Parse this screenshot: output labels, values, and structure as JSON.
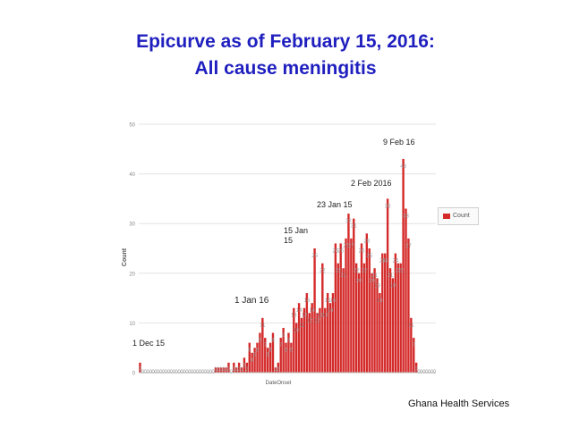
{
  "header": {
    "title_line1": "Epicurve as of February 15, 2016:",
    "title_line2": "All cause meningitis"
  },
  "credit": "Ghana Health Services",
  "annotations": [
    {
      "name": "annotation-1-dec-15",
      "text": "1 Dec 15"
    },
    {
      "name": "annotation-1-jan-16",
      "text": "1 Jan 16"
    },
    {
      "name": "annotation-15-jan-15",
      "text": "15 Jan\n15"
    },
    {
      "name": "annotation-23-jan-15",
      "text": "23 Jan 15"
    },
    {
      "name": "annotation-2-feb-2016",
      "text": "2 Feb 2016"
    },
    {
      "name": "annotation-9-feb-16",
      "text": "9 Feb 16"
    }
  ],
  "colors": {
    "bar": "#d42a2a",
    "title": "#1f1fbf"
  },
  "chart_data": {
    "type": "bar",
    "title": "",
    "xlabel": "DateOnset",
    "ylabel": "Count",
    "ylim": [
      0,
      50
    ],
    "yticks": [
      0,
      10,
      20,
      30,
      40,
      50
    ],
    "grid": true,
    "legend": {
      "position": "right",
      "entries": [
        "Count"
      ]
    },
    "series": [
      {
        "name": "Count",
        "values": [
          2,
          0,
          0,
          0,
          0,
          0,
          0,
          0,
          0,
          0,
          0,
          0,
          0,
          0,
          0,
          0,
          0,
          0,
          0,
          0,
          0,
          0,
          0,
          0,
          0,
          0,
          0,
          0,
          0,
          1,
          1,
          1,
          1,
          1,
          2,
          0,
          2,
          1,
          2,
          1,
          3,
          2,
          6,
          4,
          5,
          6,
          8,
          11,
          7,
          5,
          6,
          8,
          1,
          2,
          7,
          9,
          6,
          8,
          6,
          13,
          10,
          14,
          11,
          13,
          16,
          12,
          14,
          25,
          12,
          13,
          22,
          13,
          16,
          14,
          16,
          26,
          22,
          26,
          21,
          27,
          32,
          27,
          31,
          22,
          20,
          26,
          22,
          28,
          25,
          20,
          21,
          19,
          16,
          24,
          24,
          35,
          21,
          19,
          24,
          22,
          22,
          43,
          33,
          27,
          11,
          7,
          2,
          0,
          0,
          0,
          0,
          0,
          0,
          0
        ]
      }
    ]
  }
}
